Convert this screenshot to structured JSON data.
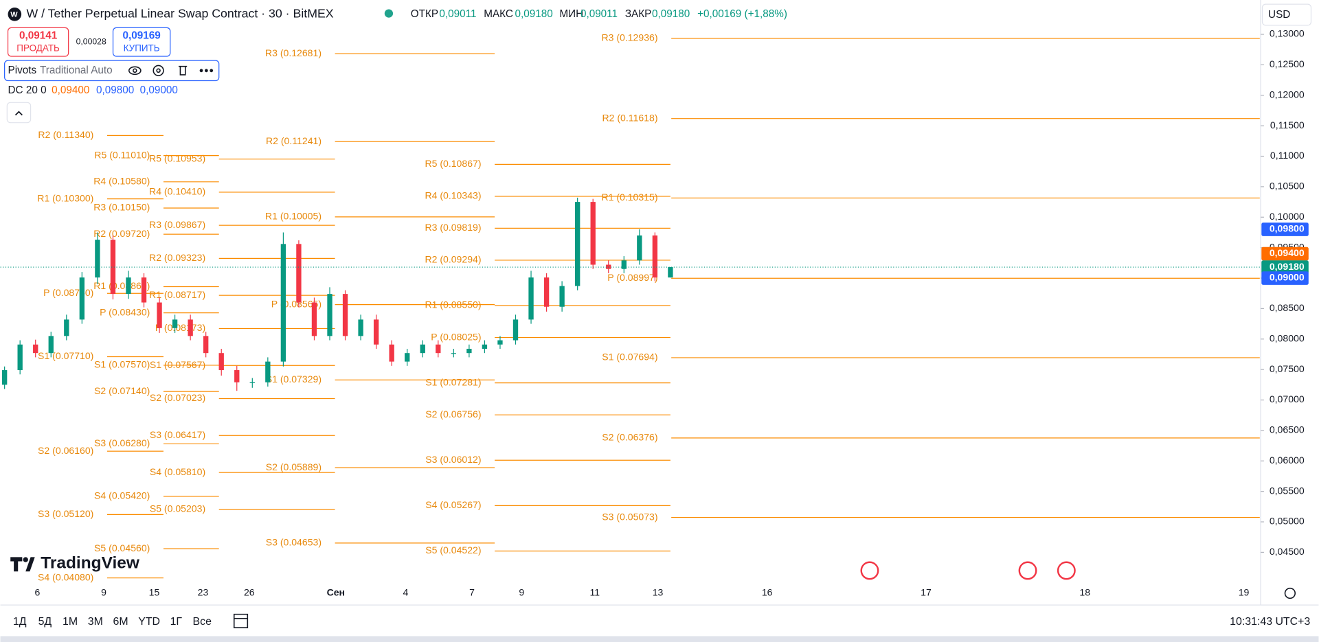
{
  "header": {
    "title": "W / Tether Perpetual Linear Swap Contract · 30 · BitMEX",
    "open_label": "ОТКР",
    "open": "0,09011",
    "high_label": "МАКС",
    "high": "0,09180",
    "low_label": "МИН",
    "low": "0,09011",
    "close_label": "ЗАКР",
    "close": "0,09180",
    "change": "+0,00169 (+1,88%)",
    "sell_price": "0,09141",
    "sell": "ПРОДАТЬ",
    "spread": "0,00028",
    "buy_price": "0,09169",
    "buy": "КУПИТЬ",
    "currency": "USD"
  },
  "indicators": {
    "pivots_name": "Pivots",
    "pivots_params": "Traditional Auto",
    "dc_name": "DC 20 0",
    "dc_basis": "0,09400",
    "dc_upper": "0,09800",
    "dc_lower": "0,09000"
  },
  "logo": "TradingView",
  "toolbar": {
    "ranges": [
      "1Д",
      "5Д",
      "1М",
      "3М",
      "6М",
      "YTD",
      "1Г",
      "Все"
    ],
    "clock": "10:31:43 UTC+3"
  },
  "chart_data": {
    "type": "candlestick",
    "open": [
      0.0725,
      0.0749,
      0.0791,
      0.0777,
      0.0805,
      0.0832,
      0.0901,
      0.0963,
      0.0874,
      0.0901,
      0.086,
      0.0818,
      0.0832,
      0.0805,
      0.0777,
      0.0749,
      0.0729,
      0.0729,
      0.0763,
      0.0956,
      0.086,
      0.0805,
      0.0874,
      0.0805,
      0.0832,
      0.0791,
      0.0763,
      0.0777,
      0.0791,
      0.0777,
      0.0777,
      0.0784,
      0.0791,
      0.0798,
      0.0832,
      0.0901,
      0.0853,
      0.0887,
      0.1025,
      0.0922,
      0.0915,
      0.0929,
      0.097,
      0.0901
    ],
    "high": [
      0.0755,
      0.0798,
      0.0799,
      0.0812,
      0.084,
      0.091,
      0.0975,
      0.097,
      0.0912,
      0.0908,
      0.0868,
      0.084,
      0.084,
      0.0812,
      0.0784,
      0.0756,
      0.0736,
      0.077,
      0.0975,
      0.0962,
      0.0868,
      0.0885,
      0.088,
      0.084,
      0.084,
      0.0798,
      0.0784,
      0.0798,
      0.0798,
      0.0784,
      0.0791,
      0.0798,
      0.0805,
      0.084,
      0.0912,
      0.0908,
      0.0895,
      0.1032,
      0.103,
      0.0929,
      0.0936,
      0.098,
      0.0975,
      0.0918
    ],
    "low": [
      0.0718,
      0.0742,
      0.077,
      0.077,
      0.0798,
      0.0825,
      0.089,
      0.0865,
      0.0866,
      0.0852,
      0.081,
      0.081,
      0.0798,
      0.077,
      0.074,
      0.0715,
      0.072,
      0.0722,
      0.0755,
      0.0852,
      0.0798,
      0.0798,
      0.0798,
      0.0798,
      0.0784,
      0.0756,
      0.0756,
      0.077,
      0.077,
      0.077,
      0.077,
      0.0777,
      0.0784,
      0.0791,
      0.0825,
      0.0845,
      0.0845,
      0.088,
      0.0915,
      0.0908,
      0.0908,
      0.0922,
      0.0895,
      0.0901
    ],
    "close": [
      0.0749,
      0.0791,
      0.0777,
      0.0805,
      0.0832,
      0.0901,
      0.0963,
      0.0874,
      0.0901,
      0.086,
      0.0818,
      0.0832,
      0.0805,
      0.0777,
      0.0749,
      0.0729,
      0.0729,
      0.0763,
      0.0956,
      0.086,
      0.0805,
      0.0874,
      0.0805,
      0.0832,
      0.0791,
      0.0763,
      0.0777,
      0.0791,
      0.0777,
      0.0777,
      0.0784,
      0.0791,
      0.0798,
      0.0832,
      0.0901,
      0.0853,
      0.0887,
      0.1025,
      0.0922,
      0.0915,
      0.0929,
      0.097,
      0.0901,
      0.0918
    ],
    "up_color": "#089981",
    "down_color": "#f23645",
    "pivot_color": "#fb8c00",
    "ylim": [
      0.0398,
      0.1315
    ],
    "yticks": [
      {
        "value": 0.045,
        "label": "0,04500"
      },
      {
        "value": 0.05,
        "label": "0,05000"
      },
      {
        "value": 0.055,
        "label": "0,05500"
      },
      {
        "value": 0.06,
        "label": "0,06000"
      },
      {
        "value": 0.065,
        "label": "0,06500"
      },
      {
        "value": 0.07,
        "label": "0,07000"
      },
      {
        "value": 0.075,
        "label": "0,07500"
      },
      {
        "value": 0.08,
        "label": "0,08000"
      },
      {
        "value": 0.085,
        "label": "0,08500"
      },
      {
        "value": 0.09,
        "label": "0,09000"
      },
      {
        "value": 0.095,
        "label": "0,09500"
      },
      {
        "value": 0.1,
        "label": "0,10000"
      },
      {
        "value": 0.105,
        "label": "0,10500"
      },
      {
        "value": 0.11,
        "label": "0,11000"
      },
      {
        "value": 0.115,
        "label": "0,11500"
      },
      {
        "value": 0.12,
        "label": "0,12000"
      },
      {
        "value": 0.125,
        "label": "0,12500"
      },
      {
        "value": 0.13,
        "label": "0,13000"
      }
    ],
    "x_labels": [
      "6",
      "9",
      "15",
      "23",
      "26",
      "Сен",
      "4",
      "7",
      "9",
      "11",
      "13",
      "16",
      "17",
      "18",
      "19"
    ],
    "price_tags": [
      {
        "value": 0.098,
        "label": "0,09800",
        "color": "#2962ff"
      },
      {
        "value": 0.094,
        "label": "0,09400",
        "color": "#ff6d00"
      },
      {
        "value": 0.0918,
        "label": "0,09180",
        "color": "#089981"
      },
      {
        "value": 0.09,
        "label": "0,09000",
        "color": "#2962ff"
      }
    ],
    "pivot_groups": [
      {
        "levels": [
          {
            "label": "R3 (0.12936)",
            "value": 0.12936
          },
          {
            "label": "R2 (0.11618)",
            "value": 0.11618
          },
          {
            "label": "R1 (0.10315)",
            "value": 0.10315
          },
          {
            "label": "P (0.08997)",
            "value": 0.08997
          },
          {
            "label": "S1 (0.07694)",
            "value": 0.07694
          },
          {
            "label": "S2 (0.06376)",
            "value": 0.06376
          },
          {
            "label": "S3 (0.05073)",
            "value": 0.05073
          }
        ]
      },
      {
        "levels": [
          {
            "label": "R5 (0.10867)",
            "value": 0.10867
          },
          {
            "label": "R4 (0.10343)",
            "value": 0.10343
          },
          {
            "label": "R3 (0.09819)",
            "value": 0.09819
          },
          {
            "label": "R2 (0.09294)",
            "value": 0.09294
          },
          {
            "label": "R1 (0.08550)",
            "value": 0.0855
          },
          {
            "label": "P (0.08025)",
            "value": 0.08025
          },
          {
            "label": "S1 (0.07281)",
            "value": 0.07281
          },
          {
            "label": "S2 (0.06756)",
            "value": 0.06756
          },
          {
            "label": "S3 (0.06012)",
            "value": 0.06012
          },
          {
            "label": "S4 (0.05267)",
            "value": 0.05267
          },
          {
            "label": "S5 (0.04522)",
            "value": 0.04522
          }
        ]
      },
      {
        "levels": [
          {
            "label": "R3 (0.12681)",
            "value": 0.12681
          },
          {
            "label": "R2 (0.11241)",
            "value": 0.11241
          },
          {
            "label": "R1 (0.10005)",
            "value": 0.10005
          },
          {
            "label": "P (0.08565)",
            "value": 0.08565
          },
          {
            "label": "S1 (0.07329)",
            "value": 0.07329
          },
          {
            "label": "S2 (0.05889)",
            "value": 0.05889
          },
          {
            "label": "S3 (0.04653)",
            "value": 0.04653
          }
        ]
      },
      {
        "levels": [
          {
            "label": "R5 (0.10953)",
            "value": 0.10953
          },
          {
            "label": "R4 (0.10410)",
            "value": 0.1041
          },
          {
            "label": "R3 (0.09867)",
            "value": 0.09867
          },
          {
            "label": "R2 (0.09323)",
            "value": 0.09323
          },
          {
            "label": "R1 (0.08717)",
            "value": 0.08717
          },
          {
            "label": "P (0.08173)",
            "value": 0.08173
          },
          {
            "label": "S1 (0.07567)",
            "value": 0.07567
          },
          {
            "label": "S2 (0.07023)",
            "value": 0.07023
          },
          {
            "label": "S3 (0.06417)",
            "value": 0.06417
          },
          {
            "label": "S4 (0.05810)",
            "value": 0.0581
          },
          {
            "label": "S5 (0.05203)",
            "value": 0.05203
          }
        ]
      },
      {
        "levels": [
          {
            "label": "R5 (0.11010)",
            "value": 0.1101
          },
          {
            "label": "R4 (0.10580)",
            "value": 0.1058
          },
          {
            "label": "R3 (0.10150)",
            "value": 0.1015
          },
          {
            "label": "R2 (0.09720)",
            "value": 0.0972
          },
          {
            "label": "R1 (0.08860)",
            "value": 0.0886
          },
          {
            "label": "P (0.08430)",
            "value": 0.0843
          },
          {
            "label": "S1 (0.07570)",
            "value": 0.0757
          },
          {
            "label": "S2 (0.07140)",
            "value": 0.0714
          },
          {
            "label": "S3 (0.06280)",
            "value": 0.0628
          },
          {
            "label": "S4 (0.05420)",
            "value": 0.0542
          },
          {
            "label": "S5 (0.04560)",
            "value": 0.0456
          }
        ]
      },
      {
        "levels": [
          {
            "label": "R2 (0.11340)",
            "value": 0.1134
          },
          {
            "label": "R1 (0.10300)",
            "value": 0.103
          },
          {
            "label": "P (0.08750)",
            "value": 0.0875
          },
          {
            "label": "S1 (0.07710)",
            "value": 0.0771
          },
          {
            "label": "S2 (0.06160)",
            "value": 0.0616
          },
          {
            "label": "S3 (0.05120)",
            "value": 0.0512
          },
          {
            "label": "S4 (0.04080)",
            "value": 0.0408
          }
        ]
      }
    ]
  }
}
